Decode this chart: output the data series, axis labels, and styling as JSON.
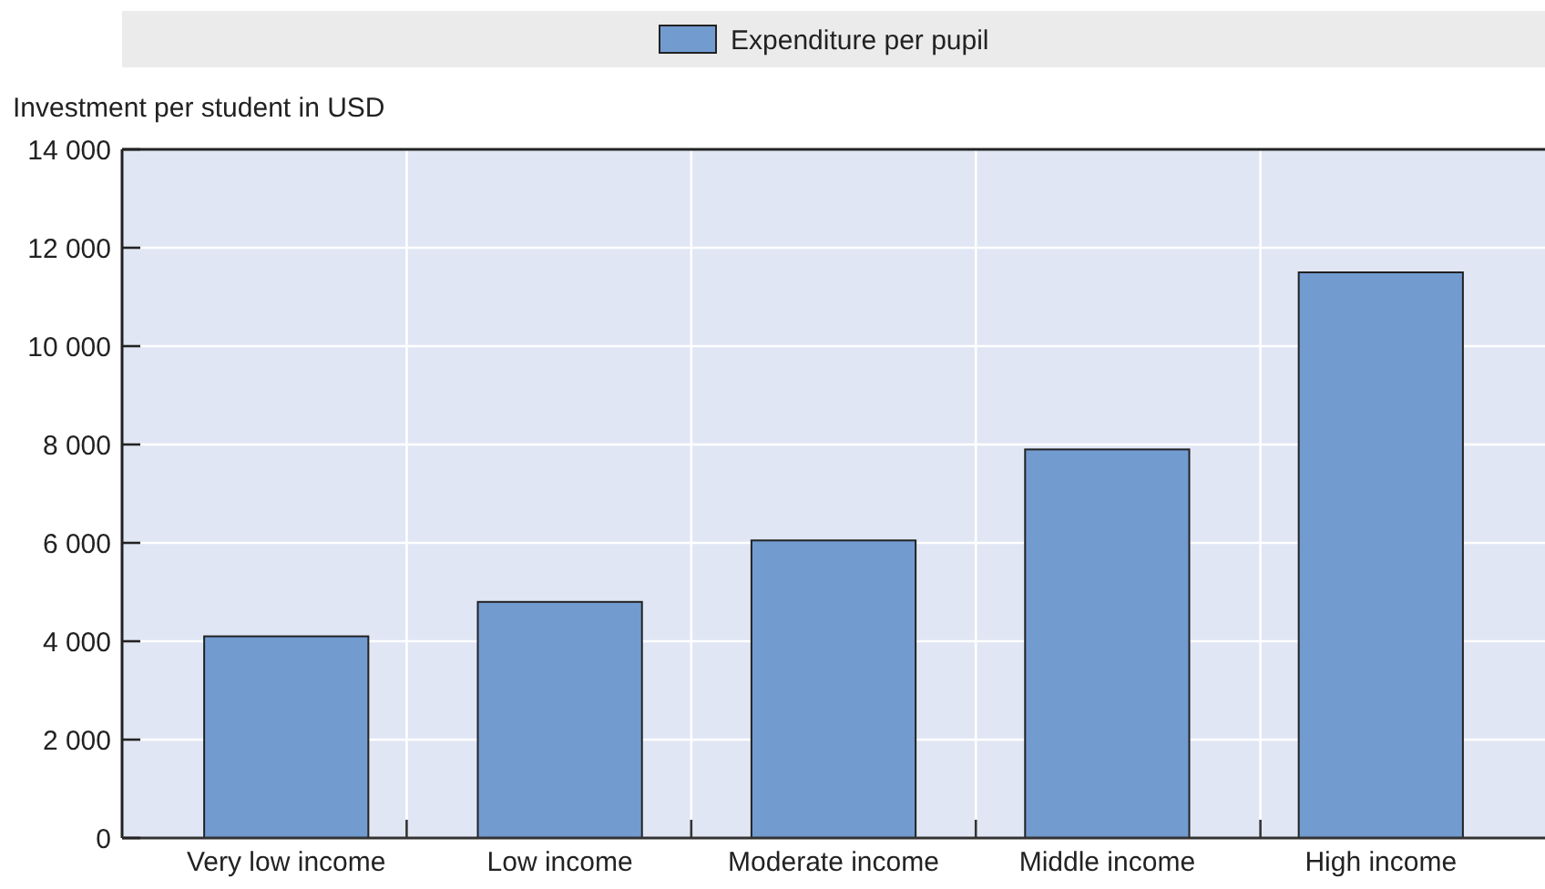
{
  "chart_data": {
    "type": "bar",
    "ylabel": "Investment per student in USD",
    "categories": [
      "Very low income",
      "Low income",
      "Moderate income",
      "Middle income",
      "High income"
    ],
    "series": [
      {
        "name": "Expenditure per pupil",
        "color": "#729bd0",
        "values": [
          4100,
          4800,
          6050,
          7900,
          11500
        ]
      }
    ],
    "ylim": [
      0,
      14000
    ],
    "yticks": [
      {
        "value": 0,
        "label": "0"
      },
      {
        "value": 2000,
        "label": "2 000"
      },
      {
        "value": 4000,
        "label": "4 000"
      },
      {
        "value": 6000,
        "label": "6 000"
      },
      {
        "value": 8000,
        "label": "8 000"
      },
      {
        "value": 10000,
        "label": "10 000"
      },
      {
        "value": 12000,
        "label": "12 000"
      },
      {
        "value": 14000,
        "label": "14 000"
      }
    ],
    "grid": true,
    "legend": "top"
  }
}
